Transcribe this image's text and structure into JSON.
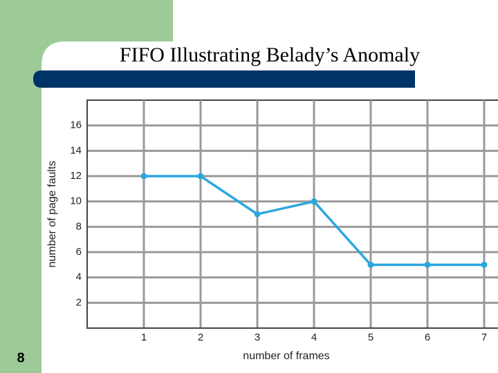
{
  "slide": {
    "title": "FIFO Illustrating Belady’s Anomaly",
    "number": 8
  },
  "chart_data": {
    "type": "line",
    "xlabel": "number of frames",
    "ylabel": "number of page faults",
    "x": [
      1,
      2,
      3,
      4,
      5,
      6,
      7
    ],
    "series": [
      {
        "name": "FIFO",
        "color": "#2aa7df",
        "values": [
          12,
          12,
          9,
          10,
          5,
          5,
          5
        ]
      }
    ],
    "xlim": [
      0,
      7
    ],
    "xticks": [
      1,
      2,
      3,
      4,
      5,
      6,
      7
    ],
    "ylim": [
      0,
      18
    ],
    "yticks": [
      2,
      4,
      6,
      8,
      10,
      12,
      14,
      16
    ],
    "grid": true
  }
}
